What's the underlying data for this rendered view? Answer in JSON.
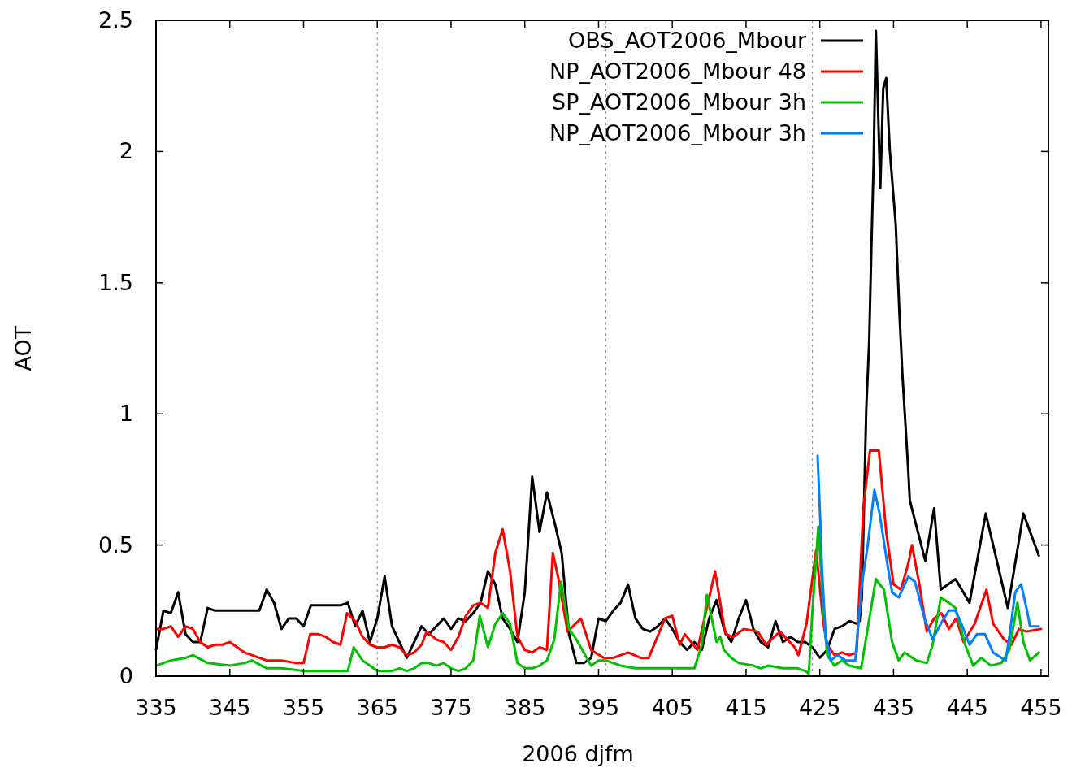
{
  "chart_data": {
    "type": "line",
    "xlabel": "2006 djfm",
    "ylabel": "AOT",
    "xlim": [
      335,
      456
    ],
    "xticks": [
      335,
      345,
      355,
      365,
      375,
      385,
      395,
      405,
      415,
      425,
      435,
      445,
      455
    ],
    "ylim": [
      0,
      2.5
    ],
    "yticks": [
      0,
      0.5,
      1,
      1.5,
      2,
      2.5
    ],
    "grid": false,
    "legend": "top right",
    "line_style": "solid",
    "ref_lines": [
      {
        "axis": "x",
        "value": 365,
        "color": "#999999",
        "line_style": "dotted"
      },
      {
        "axis": "x",
        "value": 396,
        "color": "#999999",
        "line_style": "dotted"
      },
      {
        "axis": "x",
        "value": 424,
        "color": "#999999",
        "line_style": "dotted"
      }
    ],
    "series": [
      {
        "name": "OBS_AOT2006_Mbour",
        "color": "#000000",
        "x": [
          335,
          336,
          337,
          338,
          339,
          340,
          341,
          342,
          343,
          345,
          347,
          349,
          350,
          351,
          352,
          353,
          354,
          355,
          356,
          358,
          360,
          361,
          362,
          363,
          364,
          365,
          366,
          367,
          368,
          369,
          370,
          371,
          372,
          373,
          374,
          375,
          376,
          377,
          378,
          379,
          380,
          381,
          382,
          383,
          384,
          385,
          386,
          387,
          388,
          389,
          390,
          391,
          392,
          393,
          394,
          395,
          396,
          397,
          398,
          399,
          400,
          401,
          402,
          403,
          404,
          405,
          406,
          407,
          408,
          409,
          410,
          411,
          412,
          413,
          414,
          415,
          416,
          417,
          418,
          419,
          420,
          421,
          422,
          423,
          424,
          425,
          426,
          427,
          428,
          429,
          430,
          430.4,
          430.7,
          431.3,
          431.7,
          432,
          432.3,
          432.6,
          433.2,
          433.6,
          434,
          434.5,
          435.3,
          435.8,
          436.2,
          437,
          437.2,
          439.3,
          440.5,
          441.4,
          443.4,
          445.3,
          447.5,
          450.5,
          452.6,
          454.7
        ],
        "values": [
          0.1,
          0.25,
          0.24,
          0.32,
          0.16,
          0.13,
          0.13,
          0.26,
          0.25,
          0.25,
          0.25,
          0.25,
          0.33,
          0.28,
          0.18,
          0.22,
          0.22,
          0.19,
          0.27,
          0.27,
          0.27,
          0.28,
          0.19,
          0.25,
          0.13,
          0.22,
          0.38,
          0.19,
          0.13,
          0.07,
          0.13,
          0.19,
          0.16,
          0.19,
          0.22,
          0.18,
          0.22,
          0.21,
          0.24,
          0.28,
          0.4,
          0.35,
          0.22,
          0.18,
          0.13,
          0.32,
          0.76,
          0.55,
          0.7,
          0.59,
          0.47,
          0.16,
          0.05,
          0.05,
          0.07,
          0.22,
          0.21,
          0.25,
          0.28,
          0.35,
          0.22,
          0.18,
          0.17,
          0.19,
          0.22,
          0.18,
          0.13,
          0.1,
          0.13,
          0.1,
          0.22,
          0.29,
          0.18,
          0.13,
          0.22,
          0.29,
          0.18,
          0.13,
          0.11,
          0.21,
          0.13,
          0.15,
          0.13,
          0.13,
          0.11,
          0.07,
          0.1,
          0.18,
          0.19,
          0.21,
          0.2,
          0.21,
          0.3,
          1.02,
          1.28,
          1.64,
          1.96,
          2.46,
          1.86,
          2.24,
          2.28,
          2.0,
          1.72,
          1.38,
          1.15,
          0.78,
          0.67,
          0.44,
          0.64,
          0.33,
          0.37,
          0.28,
          0.62,
          0.26,
          0.62,
          0.46
        ]
      },
      {
        "name": "NP_AOT2006_Mbour 48",
        "color": "#ff0000",
        "x": [
          335,
          336,
          337,
          338,
          339,
          340,
          341,
          342,
          343,
          344,
          345,
          346,
          347,
          348,
          349,
          350,
          352,
          354,
          355,
          355.9,
          357,
          358,
          359,
          360,
          360.9,
          362,
          363,
          364,
          365,
          366,
          367,
          368,
          369,
          370,
          371,
          371.7,
          373,
          374,
          375,
          376,
          377,
          378,
          379,
          380,
          381,
          382,
          383,
          384,
          385,
          386,
          387,
          388,
          388.8,
          389.5,
          390.8,
          392.6,
          394,
          395.7,
          397,
          399,
          400.7,
          401.8,
          404,
          405,
          406,
          406.7,
          408.4,
          410.8,
          412.2,
          413.3,
          414.7,
          416.6,
          417.7,
          419.6,
          421.6,
          422.1,
          423.2,
          424.5,
          425.5,
          426,
          427,
          428,
          429,
          430,
          430.9,
          431.8,
          433,
          434,
          435,
          436,
          437,
          437.5,
          438.5,
          439.5,
          440.5,
          441.5,
          442.5,
          443.5,
          444.5,
          446,
          447.6,
          448.5,
          450,
          451,
          452,
          453,
          455
        ],
        "values": [
          0.18,
          0.18,
          0.19,
          0.15,
          0.19,
          0.18,
          0.13,
          0.11,
          0.12,
          0.12,
          0.13,
          0.11,
          0.09,
          0.08,
          0.07,
          0.06,
          0.06,
          0.05,
          0.05,
          0.16,
          0.16,
          0.15,
          0.13,
          0.12,
          0.24,
          0.21,
          0.15,
          0.12,
          0.11,
          0.11,
          0.12,
          0.11,
          0.08,
          0.09,
          0.12,
          0.17,
          0.14,
          0.13,
          0.1,
          0.15,
          0.23,
          0.27,
          0.28,
          0.26,
          0.47,
          0.56,
          0.4,
          0.15,
          0.1,
          0.09,
          0.11,
          0.1,
          0.47,
          0.38,
          0.17,
          0.22,
          0.1,
          0.07,
          0.07,
          0.09,
          0.07,
          0.07,
          0.22,
          0.23,
          0.12,
          0.16,
          0.1,
          0.4,
          0.16,
          0.15,
          0.18,
          0.17,
          0.12,
          0.17,
          0.11,
          0.08,
          0.2,
          0.48,
          0.2,
          0.12,
          0.08,
          0.09,
          0.08,
          0.09,
          0.64,
          0.86,
          0.86,
          0.55,
          0.35,
          0.33,
          0.43,
          0.5,
          0.35,
          0.17,
          0.22,
          0.24,
          0.18,
          0.22,
          0.13,
          0.2,
          0.33,
          0.2,
          0.14,
          0.12,
          0.18,
          0.17,
          0.18
        ]
      },
      {
        "name": "SP_AOT2006_Mbour 3h",
        "color": "#00c000",
        "x": [
          335,
          337,
          339,
          340,
          342,
          345,
          347,
          348,
          350,
          352,
          355,
          361,
          361.8,
          363,
          364,
          365,
          367,
          368,
          369,
          370,
          371,
          372,
          373,
          374,
          375,
          376,
          377,
          378,
          378.9,
          380,
          381,
          382,
          383,
          384,
          385,
          386,
          387,
          388,
          389,
          389.9,
          391,
          392,
          393,
          394,
          395,
          396,
          398,
          400,
          405,
          408,
          409,
          409.7,
          411,
          411.5,
          412,
          413,
          414,
          416,
          417,
          418,
          420,
          422,
          423,
          423.5,
          424,
          424.8,
          425.5,
          426,
          427,
          428,
          429,
          430.6,
          432.6,
          433.7,
          434.8,
          435.7,
          436.5,
          438.1,
          439.5,
          440.3,
          441.4,
          442.5,
          443.4,
          444.7,
          445.8,
          446.9,
          448.2,
          449.6,
          450.7,
          451.8,
          452.6,
          453.5,
          454.7
        ],
        "values": [
          0.04,
          0.06,
          0.07,
          0.08,
          0.05,
          0.04,
          0.05,
          0.06,
          0.03,
          0.03,
          0.02,
          0.02,
          0.11,
          0.06,
          0.04,
          0.02,
          0.02,
          0.03,
          0.02,
          0.03,
          0.05,
          0.05,
          0.04,
          0.05,
          0.03,
          0.02,
          0.03,
          0.06,
          0.23,
          0.11,
          0.2,
          0.24,
          0.2,
          0.05,
          0.03,
          0.03,
          0.04,
          0.06,
          0.14,
          0.36,
          0.18,
          0.14,
          0.09,
          0.04,
          0.06,
          0.06,
          0.04,
          0.03,
          0.03,
          0.03,
          0.12,
          0.31,
          0.13,
          0.15,
          0.1,
          0.07,
          0.05,
          0.04,
          0.03,
          0.04,
          0.03,
          0.03,
          0.02,
          0.01,
          0.25,
          0.57,
          0.25,
          0.08,
          0.04,
          0.06,
          0.04,
          0.03,
          0.37,
          0.33,
          0.13,
          0.06,
          0.09,
          0.06,
          0.05,
          0.12,
          0.3,
          0.28,
          0.26,
          0.12,
          0.04,
          0.07,
          0.04,
          0.05,
          0.1,
          0.28,
          0.13,
          0.06,
          0.09
        ]
      },
      {
        "name": "NP_AOT2006_Mbour 3h",
        "color": "#0080ff",
        "x": [
          424.7,
          425.1,
          425.3,
          425.8,
          426.5,
          427.4,
          428.5,
          429.8,
          430.7,
          431.5,
          432.4,
          433.1,
          434.2,
          434.8,
          435.7,
          437,
          437.9,
          439.2,
          440.3,
          441.4,
          442.5,
          443.4,
          444.2,
          445.3,
          446.3,
          447.4,
          448.5,
          450.2,
          450.7,
          451.5,
          452.3,
          453.1,
          453.5,
          454.7
        ],
        "values": [
          0.84,
          0.57,
          0.41,
          0.15,
          0.06,
          0.08,
          0.06,
          0.06,
          0.35,
          0.5,
          0.71,
          0.62,
          0.42,
          0.32,
          0.3,
          0.38,
          0.36,
          0.22,
          0.14,
          0.2,
          0.25,
          0.25,
          0.2,
          0.12,
          0.16,
          0.16,
          0.09,
          0.06,
          0.15,
          0.32,
          0.35,
          0.25,
          0.19,
          0.19
        ]
      }
    ]
  }
}
